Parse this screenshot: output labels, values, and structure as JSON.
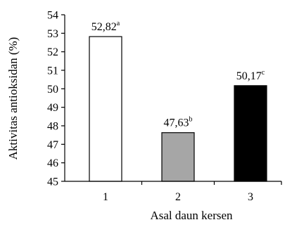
{
  "chart_data": {
    "type": "bar",
    "categories": [
      "1",
      "2",
      "3"
    ],
    "values": [
      52.82,
      47.63,
      50.17
    ],
    "data_labels": [
      {
        "text": "52,82",
        "superscript": "a"
      },
      {
        "text": "47,63",
        "superscript": "b"
      },
      {
        "text": "50,17",
        "superscript": "c"
      }
    ],
    "bar_colors": [
      "#ffffff",
      "#a6a6a6",
      "#000000"
    ],
    "xlabel": "Asal daun kersen",
    "ylabel": "Aktivitas antioksidan (%)",
    "ylim": [
      45,
      54
    ],
    "yticks": [
      45,
      46,
      47,
      48,
      49,
      50,
      51,
      52,
      53,
      54
    ],
    "grid": false,
    "legend": "none"
  }
}
